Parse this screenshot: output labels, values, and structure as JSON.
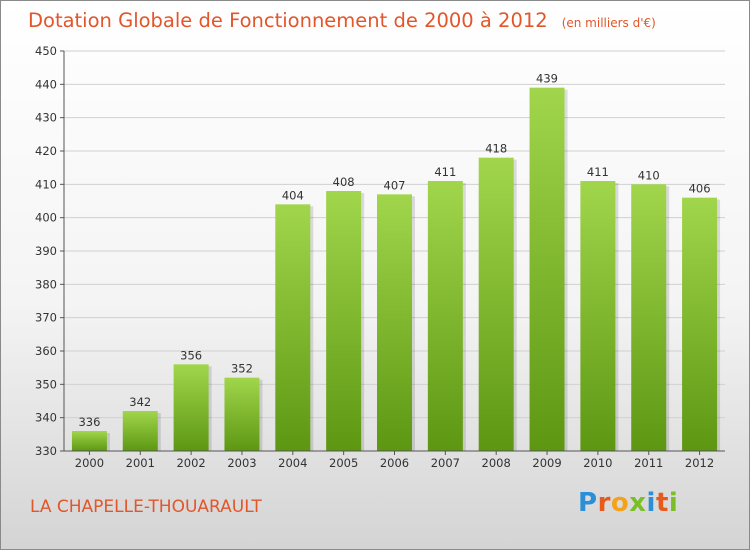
{
  "title": "Dotation Globale de Fonctionnement de 2000 à 2012",
  "unit": "(en milliers d'€)",
  "place": "LA CHAPELLE-THOUARAULT",
  "logo": {
    "text": "Proxiti",
    "letters": [
      {
        "ch": "P",
        "color": "#2a8fd6"
      },
      {
        "ch": "r",
        "color": "#e85a1c"
      },
      {
        "ch": "o",
        "color": "#f2a31b"
      },
      {
        "ch": "x",
        "color": "#7bbf26"
      },
      {
        "ch": "i",
        "color": "#2a8fd6"
      },
      {
        "ch": "t",
        "color": "#e85a1c"
      },
      {
        "ch": "i",
        "color": "#7bbf26"
      }
    ]
  },
  "colors": {
    "accent": "#e2562a",
    "bar_top": "#a1d64c",
    "bar_bottom": "#5d9712",
    "grid": "#d0d0d0",
    "axis": "#555555",
    "text": "#333333"
  },
  "chart_data": {
    "type": "bar",
    "title": "Dotation Globale de Fonctionnement de 2000 à 2012",
    "xlabel": "",
    "ylabel": "(en milliers d'€)",
    "categories": [
      "2000",
      "2001",
      "2002",
      "2003",
      "2004",
      "2005",
      "2006",
      "2007",
      "2008",
      "2009",
      "2010",
      "2011",
      "2012"
    ],
    "values": [
      336,
      342,
      356,
      352,
      404,
      408,
      407,
      411,
      418,
      439,
      411,
      410,
      406
    ],
    "ylim": [
      330,
      450
    ],
    "yticks": [
      330,
      340,
      350,
      360,
      370,
      380,
      390,
      400,
      410,
      420,
      430,
      440,
      450
    ],
    "grid": true,
    "legend": "none"
  }
}
